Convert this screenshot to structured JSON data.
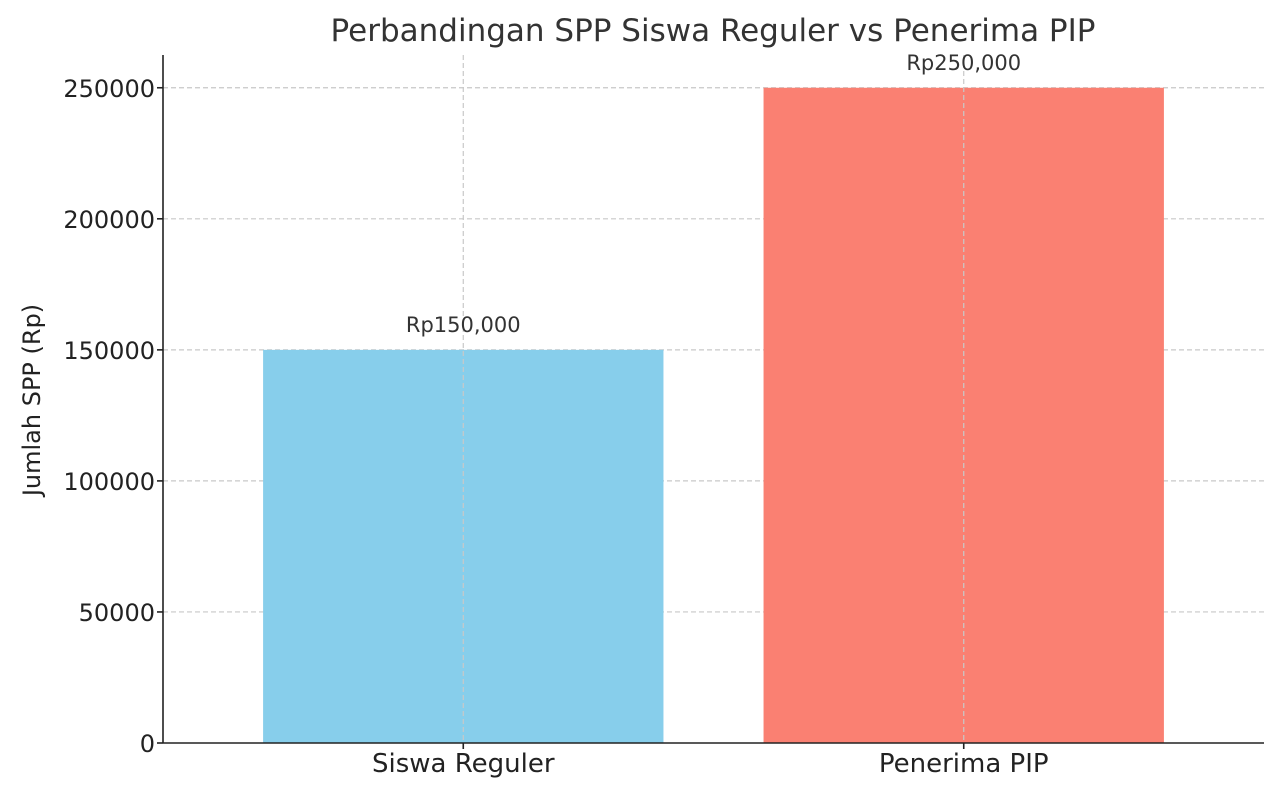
{
  "chart_data": {
    "type": "bar",
    "title": "Perbandingan SPP Siswa Reguler vs Penerima PIP",
    "xlabel": "",
    "ylabel": "Jumlah SPP (Rp)",
    "categories": [
      "Siswa Reguler",
      "Penerima PIP"
    ],
    "values": [
      150000,
      250000
    ],
    "value_labels": [
      "Rp150,000",
      "Rp250,000"
    ],
    "colors": [
      "#87ceeb",
      "#fa8072"
    ],
    "ylim": [
      0,
      262500
    ],
    "yticks": [
      0,
      50000,
      100000,
      150000,
      200000,
      250000
    ],
    "grid": true,
    "legend": "none"
  }
}
